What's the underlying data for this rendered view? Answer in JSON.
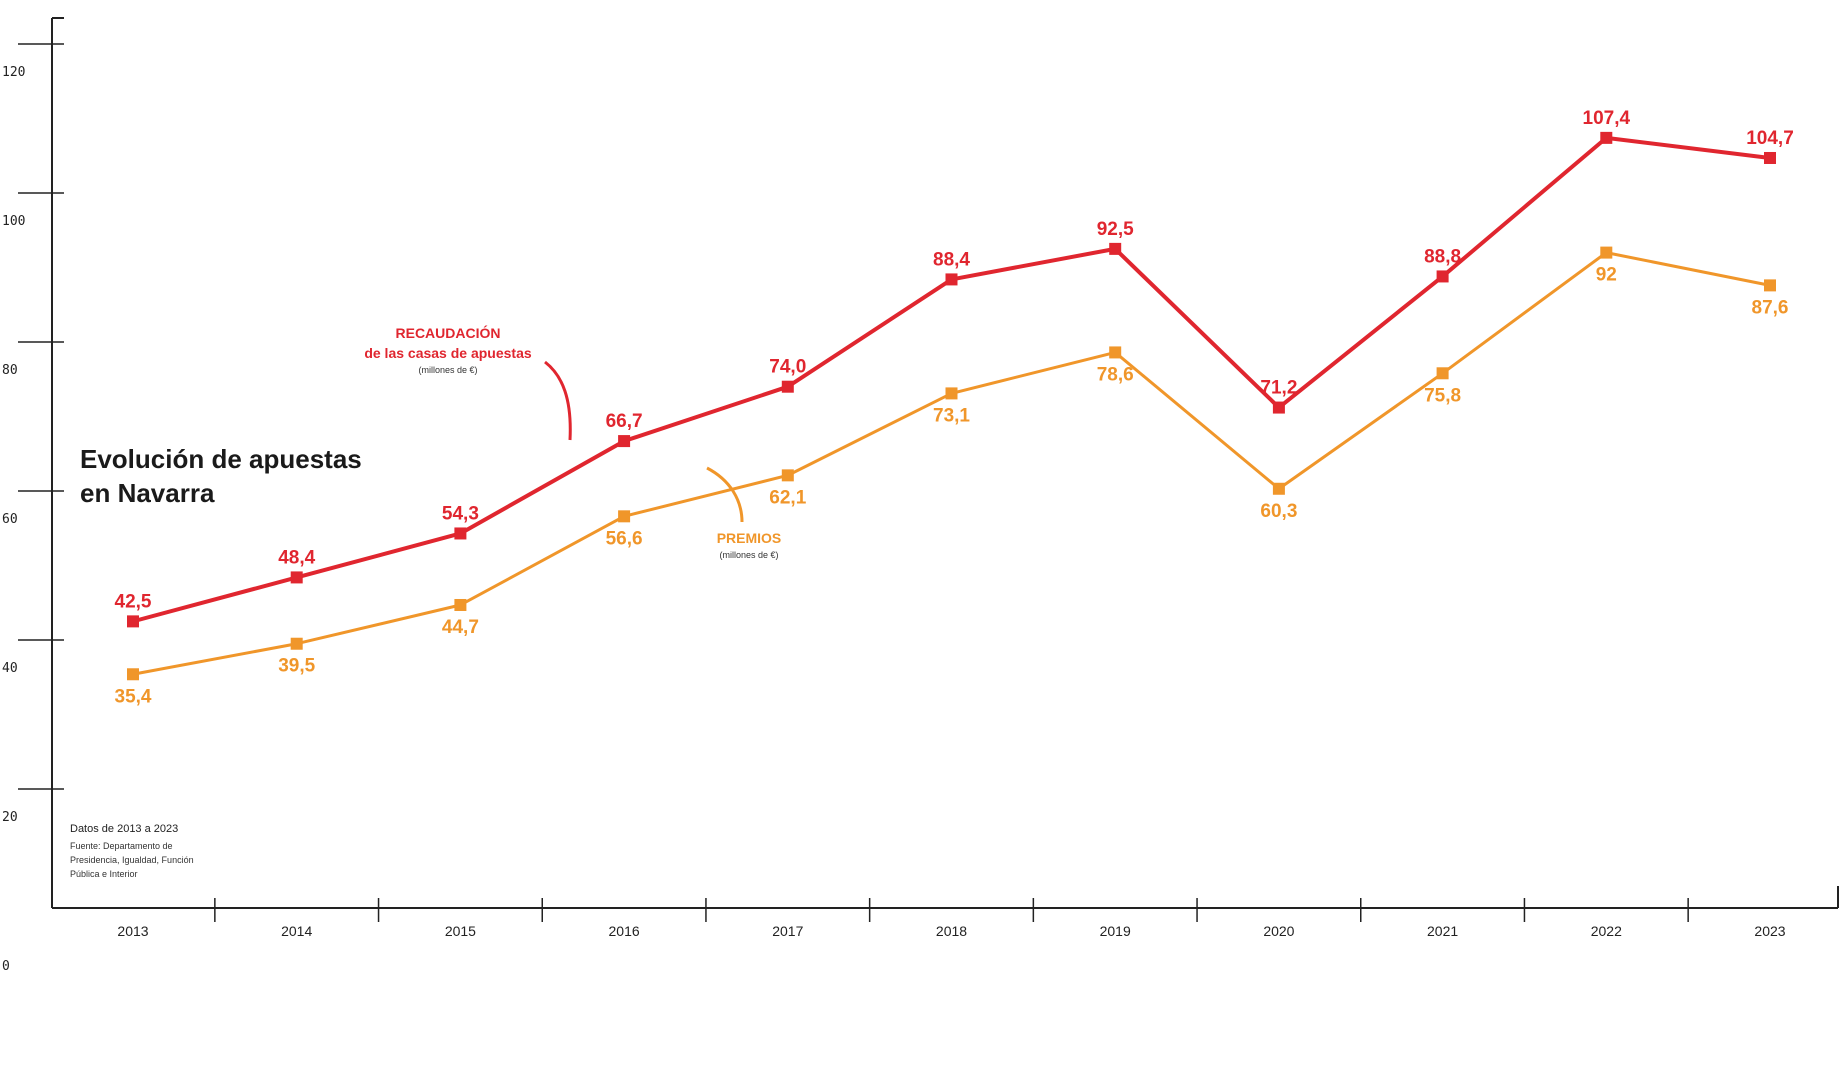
{
  "chart_data": {
    "type": "line",
    "title_lines": [
      "Evolución de apuestas",
      "en Navarra"
    ],
    "categories": [
      "2013",
      "2014",
      "2015",
      "2016",
      "2017",
      "2018",
      "2019",
      "2020",
      "2021",
      "2022",
      "2023"
    ],
    "yticks": [
      "0",
      "20",
      "40",
      "60",
      "80",
      "100",
      "120"
    ],
    "ylim": [
      0,
      120
    ],
    "grid": false,
    "series": [
      {
        "name_lines": [
          "RECAUDACIÓN",
          "de las casas de apuestas"
        ],
        "unit": "(millones de €)",
        "color": "#e0262f",
        "values": [
          42.5,
          48.4,
          54.3,
          66.7,
          74.0,
          88.4,
          92.5,
          71.2,
          88.8,
          107.4,
          104.7
        ],
        "labels": [
          "42,5",
          "48,4",
          "54,3",
          "66,7",
          "74,0",
          "88,4",
          "92,5",
          "71,2",
          "88,8",
          "107,4",
          "104,7"
        ]
      },
      {
        "name_lines": [
          "PREMIOS"
        ],
        "unit": "(millones de €)",
        "color": "#f0962a",
        "values": [
          35.4,
          39.5,
          44.7,
          56.6,
          62.1,
          73.1,
          78.6,
          60.3,
          75.8,
          92,
          87.6
        ],
        "labels": [
          "35,4",
          "39,5",
          "44,7",
          "56,6",
          "62,1",
          "73,1",
          "78,6",
          "60,3",
          "75,8",
          "92",
          "87,6"
        ]
      }
    ],
    "source": {
      "title": "Datos de 2013 a 2023",
      "lines": [
        "Fuente: Departamento de",
        "Presidencia, Igualdad, Función",
        "Pública e Interior"
      ]
    }
  }
}
